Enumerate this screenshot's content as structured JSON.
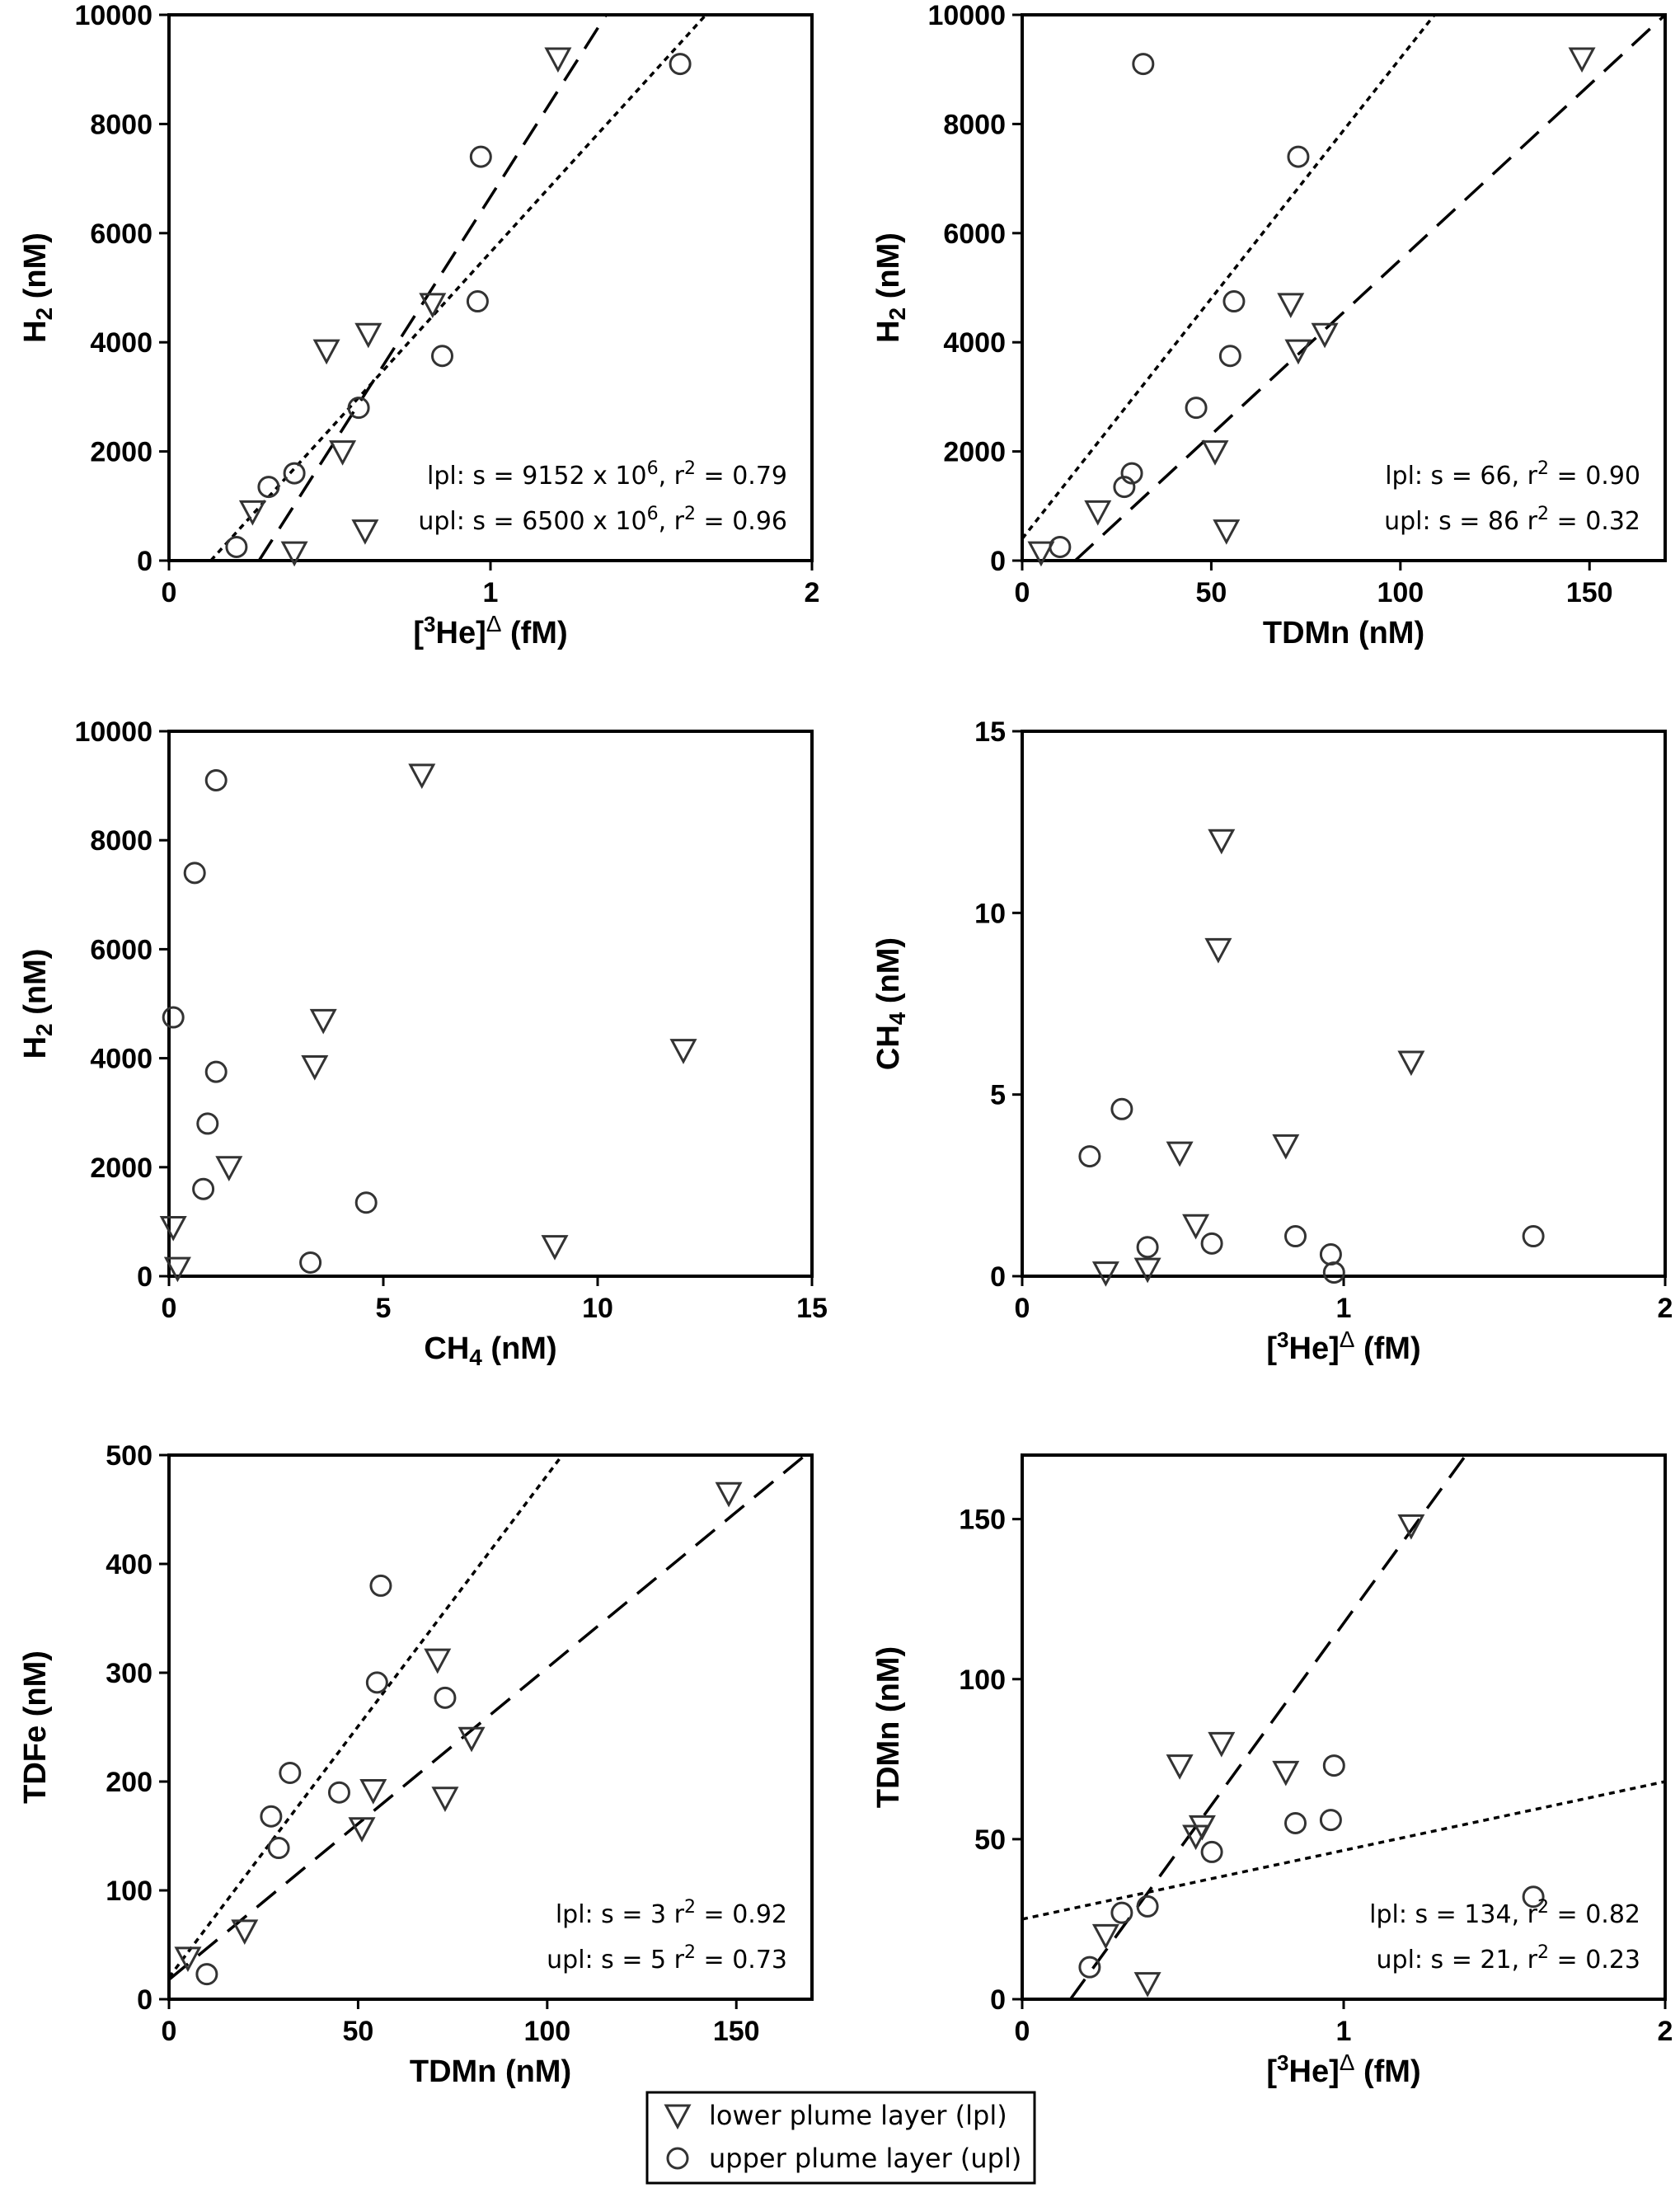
{
  "legend": {
    "items": [
      {
        "key": "lpl",
        "label": "lower plume layer (lpl)",
        "marker": "triangle-down"
      },
      {
        "key": "upl",
        "label": "upper plume layer (upl)",
        "marker": "circle"
      }
    ]
  },
  "chart_data": [
    {
      "id": "a",
      "type": "scatter",
      "xlabel": {
        "pre": "[",
        "sup1": "3",
        "mid": "He]",
        "sup2": "Δ",
        "post": " (fM)"
      },
      "ylabel": {
        "main": "H",
        "sub": "2",
        "post": " (nM)"
      },
      "xlim": [
        0,
        2
      ],
      "ylim": [
        0,
        10000
      ],
      "xticks": [
        0,
        1,
        2
      ],
      "yticks": [
        0,
        2000,
        4000,
        6000,
        8000,
        10000
      ],
      "series": [
        {
          "name": "lpl",
          "marker": "triangle-down",
          "x": [
            1.21,
            0.82,
            0.62,
            0.49,
            0.54,
            0.61,
            0.26,
            0.39
          ],
          "y": [
            9200,
            4700,
            4150,
            3850,
            2000,
            550,
            900,
            150
          ]
        },
        {
          "name": "upl",
          "marker": "circle",
          "x": [
            1.59,
            0.97,
            0.96,
            0.85,
            0.59,
            0.39,
            0.31,
            0.21
          ],
          "y": [
            9100,
            7400,
            4750,
            3750,
            2800,
            1600,
            1350,
            250
          ]
        }
      ],
      "fits": [
        {
          "name": "lpl",
          "style": "long-dash",
          "x": [
            0.28,
            1.36
          ],
          "y": [
            0,
            10000
          ]
        },
        {
          "name": "upl",
          "style": "short-dash",
          "x": [
            0.13,
            1.67
          ],
          "y": [
            0,
            10000
          ]
        }
      ],
      "annotations": [
        {
          "line": [
            {
              "t": "lpl: s = 9152 x 10"
            },
            {
              "t": "6",
              "sup": true
            },
            {
              "t": ", r"
            },
            {
              "t": "2",
              "sup": true
            },
            {
              "t": " = 0.79"
            }
          ]
        },
        {
          "line": [
            {
              "t": "upl: s = 6500 x 10"
            },
            {
              "t": "6",
              "sup": true
            },
            {
              "t": ", r"
            },
            {
              "t": "2",
              "sup": true
            },
            {
              "t": " = 0.96"
            }
          ]
        }
      ]
    },
    {
      "id": "b",
      "type": "scatter",
      "xlabel": {
        "text": "TDMn (nM)"
      },
      "ylabel": {
        "main": "H",
        "sub": "2",
        "post": " (nM)"
      },
      "xlim": [
        0,
        170
      ],
      "ylim": [
        0,
        10000
      ],
      "xticks": [
        0,
        50,
        100,
        150
      ],
      "yticks": [
        0,
        2000,
        4000,
        6000,
        8000,
        10000
      ],
      "series": [
        {
          "name": "lpl",
          "marker": "triangle-down",
          "x": [
            148,
            71,
            80,
            73,
            51,
            54,
            20,
            5
          ],
          "y": [
            9200,
            4700,
            4150,
            3850,
            2000,
            550,
            900,
            150
          ]
        },
        {
          "name": "upl",
          "marker": "circle",
          "x": [
            32,
            73,
            56,
            55,
            46,
            29,
            27,
            10
          ],
          "y": [
            9100,
            7400,
            4750,
            3750,
            2800,
            1600,
            1350,
            250
          ]
        }
      ],
      "fits": [
        {
          "name": "lpl",
          "style": "long-dash",
          "x": [
            14,
            170
          ],
          "y": [
            0,
            10000
          ]
        },
        {
          "name": "upl",
          "style": "short-dash",
          "x": [
            0,
            109
          ],
          "y": [
            400,
            10000
          ]
        }
      ],
      "annotations": [
        {
          "line": [
            {
              "t": "lpl: s = 66, r"
            },
            {
              "t": "2",
              "sup": true
            },
            {
              "t": " = 0.90"
            }
          ]
        },
        {
          "line": [
            {
              "t": "upl: s = 86 r"
            },
            {
              "t": "2",
              "sup": true
            },
            {
              "t": " = 0.32"
            }
          ]
        }
      ]
    },
    {
      "id": "c",
      "type": "scatter",
      "xlabel": {
        "main": "CH",
        "sub": "4",
        "post": " (nM)"
      },
      "ylabel": {
        "main": "H",
        "sub": "2",
        "post": " (nM)"
      },
      "xlim": [
        0,
        15
      ],
      "ylim": [
        0,
        10000
      ],
      "xticks": [
        0,
        5,
        10,
        15
      ],
      "yticks": [
        0,
        2000,
        4000,
        6000,
        8000,
        10000
      ],
      "series": [
        {
          "name": "lpl",
          "marker": "triangle-down",
          "x": [
            5.9,
            3.6,
            3.4,
            12.0,
            1.4,
            9.0,
            0.1,
            0.2
          ],
          "y": [
            9200,
            4700,
            3850,
            4150,
            2000,
            550,
            900,
            150
          ]
        },
        {
          "name": "upl",
          "marker": "circle",
          "x": [
            1.1,
            0.6,
            0.1,
            1.1,
            0.9,
            0.8,
            4.6,
            3.3
          ],
          "y": [
            9100,
            7400,
            4750,
            3750,
            2800,
            1600,
            1350,
            250
          ]
        }
      ],
      "fits": [],
      "annotations": []
    },
    {
      "id": "d",
      "type": "scatter",
      "xlabel": {
        "pre": "[",
        "sup1": "3",
        "mid": "He]",
        "sup2": "Δ",
        "post": " (fM)"
      },
      "ylabel": {
        "main": "CH",
        "sub": "4",
        "post": " (nM)"
      },
      "xlim": [
        0,
        2
      ],
      "ylim": [
        0,
        15
      ],
      "xticks": [
        0,
        1,
        2
      ],
      "yticks": [
        0,
        5,
        10,
        15
      ],
      "series": [
        {
          "name": "lpl",
          "marker": "triangle-down",
          "x": [
            0.62,
            0.61,
            1.21,
            0.49,
            0.82,
            0.54,
            0.26,
            0.39
          ],
          "y": [
            12.0,
            9.0,
            5.9,
            3.4,
            3.6,
            1.4,
            0.1,
            0.2
          ]
        },
        {
          "name": "upl",
          "marker": "circle",
          "x": [
            0.31,
            0.21,
            0.39,
            0.59,
            0.85,
            0.96,
            0.97,
            1.59
          ],
          "y": [
            4.6,
            3.3,
            0.8,
            0.9,
            1.1,
            0.6,
            0.1,
            1.1
          ]
        }
      ],
      "fits": [],
      "annotations": []
    },
    {
      "id": "e",
      "type": "scatter",
      "xlabel": {
        "text": "TDMn (nM)"
      },
      "ylabel": {
        "text": "TDFe (nM)"
      },
      "xlim": [
        0,
        170
      ],
      "ylim": [
        0,
        500
      ],
      "xticks": [
        0,
        50,
        100,
        150
      ],
      "yticks": [
        0,
        100,
        200,
        300,
        400,
        500
      ],
      "series": [
        {
          "name": "lpl",
          "marker": "triangle-down",
          "x": [
            148,
            71,
            80,
            73,
            54,
            51,
            20,
            5
          ],
          "y": [
            465,
            312,
            240,
            185,
            192,
            157,
            63,
            38
          ]
        },
        {
          "name": "upl",
          "marker": "circle",
          "x": [
            56,
            73,
            55,
            32,
            45,
            27,
            29,
            10
          ],
          "y": [
            380,
            277,
            291,
            208,
            190,
            168,
            139,
            23
          ]
        }
      ],
      "fits": [
        {
          "name": "lpl",
          "style": "long-dash",
          "x": [
            0,
            170
          ],
          "y": [
            18,
            505
          ]
        },
        {
          "name": "upl",
          "style": "short-dash",
          "x": [
            0,
            104
          ],
          "y": [
            20,
            500
          ]
        }
      ],
      "annotations": [
        {
          "line": [
            {
              "t": "lpl: s = 3 r"
            },
            {
              "t": "2",
              "sup": true
            },
            {
              "t": " = 0.92"
            }
          ]
        },
        {
          "line": [
            {
              "t": "upl: s = 5 r"
            },
            {
              "t": "2",
              "sup": true
            },
            {
              "t": " = 0.73"
            }
          ]
        }
      ]
    },
    {
      "id": "f",
      "type": "scatter",
      "xlabel": {
        "pre": "[",
        "sup1": "3",
        "mid": "He]",
        "sup2": "Δ",
        "post": " (fM)"
      },
      "ylabel": {
        "text": "TDMn (nM)"
      },
      "xlim": [
        0,
        2
      ],
      "ylim": [
        0,
        170
      ],
      "xticks": [
        0,
        1,
        2
      ],
      "yticks": [
        0,
        50,
        100,
        150
      ],
      "series": [
        {
          "name": "lpl",
          "marker": "triangle-down",
          "x": [
            1.21,
            0.62,
            0.82,
            0.49,
            0.56,
            0.54,
            0.26,
            0.39
          ],
          "y": [
            148,
            80,
            71,
            73,
            54,
            51,
            20,
            5
          ]
        },
        {
          "name": "upl",
          "marker": "circle",
          "x": [
            0.97,
            0.96,
            0.85,
            0.59,
            0.39,
            0.31,
            0.21,
            1.59
          ],
          "y": [
            73,
            56,
            55,
            46,
            29,
            27,
            10,
            32
          ]
        }
      ],
      "fits": [
        {
          "name": "lpl",
          "style": "long-dash",
          "x": [
            0.15,
            1.38
          ],
          "y": [
            0,
            170
          ]
        },
        {
          "name": "upl",
          "style": "short-dash",
          "x": [
            0,
            2
          ],
          "y": [
            25,
            68
          ]
        }
      ],
      "annotations": [
        {
          "line": [
            {
              "t": "lpl: s = 134, r"
            },
            {
              "t": "2",
              "sup": true
            },
            {
              "t": " = 0.82"
            }
          ]
        },
        {
          "line": [
            {
              "t": "upl: s = 21, r"
            },
            {
              "t": "2",
              "sup": true
            },
            {
              "t": " = 0.23"
            }
          ]
        }
      ]
    }
  ]
}
